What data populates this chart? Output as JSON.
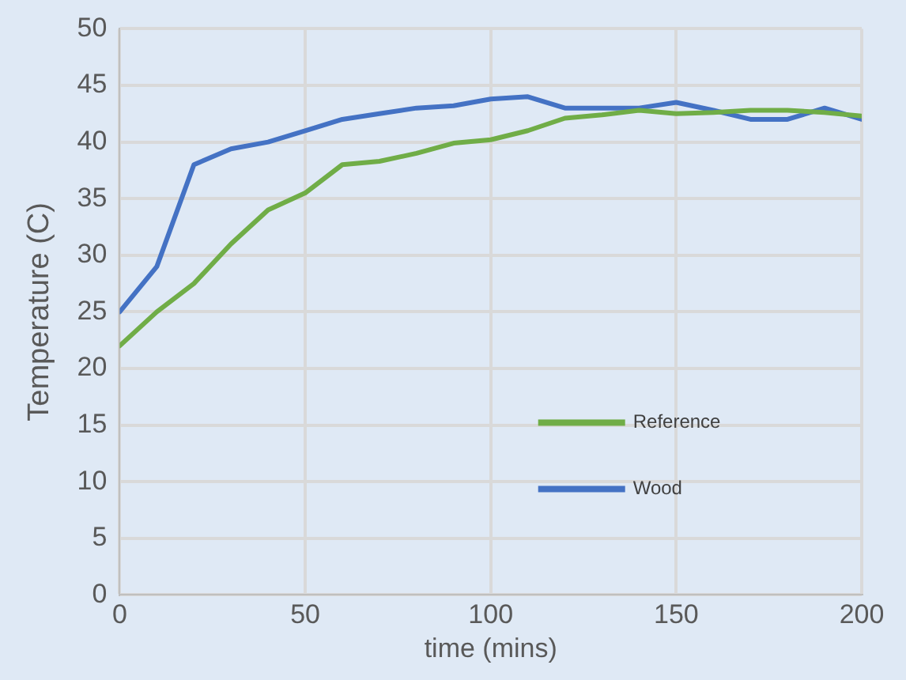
{
  "chart_data": {
    "type": "line",
    "xlabel": "time (mins)",
    "ylabel": "Temperature (C)",
    "x": [
      0,
      10,
      20,
      30,
      40,
      50,
      60,
      70,
      80,
      90,
      100,
      110,
      120,
      130,
      140,
      150,
      160,
      170,
      180,
      190,
      200
    ],
    "series": [
      {
        "name": "Reference",
        "color": "#70ad47",
        "values": [
          22,
          25,
          27.5,
          31,
          34,
          35.5,
          38,
          38.3,
          39,
          39.9,
          40.2,
          41,
          42.1,
          42.4,
          42.8,
          42.5,
          42.6,
          42.8,
          42.8,
          42.6,
          42.3
        ]
      },
      {
        "name": "Wood",
        "color": "#4472c4",
        "values": [
          25,
          29,
          38,
          39.4,
          40,
          41,
          42,
          42.5,
          43,
          43.2,
          43.8,
          44,
          43,
          43,
          43,
          43.5,
          42.8,
          42,
          42,
          43,
          42
        ]
      }
    ],
    "xlim": [
      0,
      200
    ],
    "xticks": [
      0,
      50,
      100,
      150,
      200
    ],
    "ylim": [
      0,
      50
    ],
    "yticks": [
      0,
      5,
      10,
      15,
      20,
      25,
      30,
      35,
      40,
      45,
      50
    ],
    "grid": true,
    "legend": "center",
    "marker": "none",
    "line_style": "solid"
  }
}
